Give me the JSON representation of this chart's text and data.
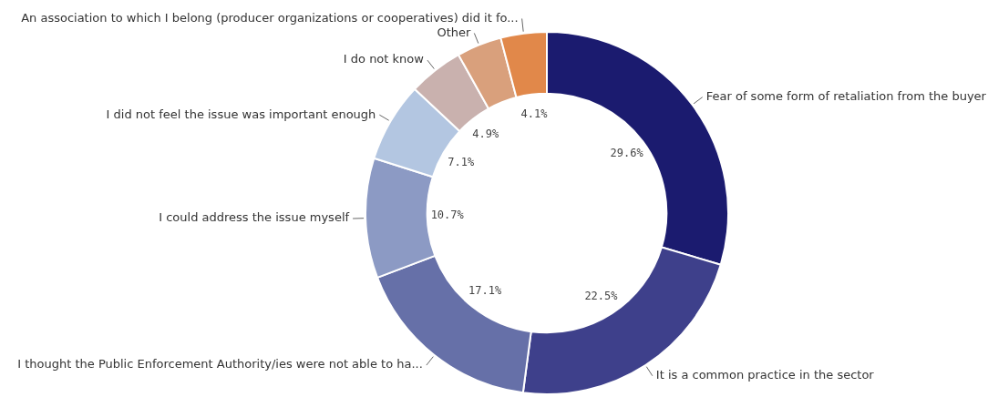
{
  "chart_data": {
    "type": "donut",
    "categories": [
      "Fear of some form of retaliation from the buyer",
      "It is a common practice in the sector",
      "I thought the Public Enforcement Authority/ies were not able to ha...",
      "I could address the issue myself",
      "I did not feel the issue was important enough",
      "I do not know",
      "Other",
      "An association to which I belong (producer organizations or cooperatives) did it fo..."
    ],
    "values": [
      29.6,
      22.5,
      17.1,
      10.7,
      7.1,
      4.9,
      4.0,
      4.1
    ],
    "value_labels": [
      "29.6%",
      "22.5%",
      "17.1%",
      "10.7%",
      "7.1%",
      "4.9%",
      null,
      "4.1%"
    ],
    "colors": [
      "#1b1b6f",
      "#3e408b",
      "#6670a8",
      "#8c9ac4",
      "#b3c6e1",
      "#c9b1ae",
      "#d9a07c",
      "#e1884a"
    ],
    "legend": false
  }
}
